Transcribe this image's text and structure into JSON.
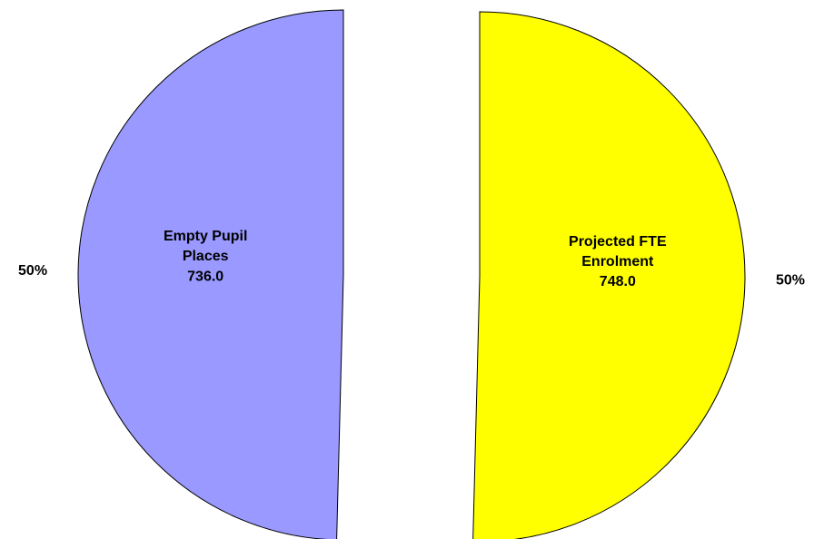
{
  "chart_data": {
    "type": "pie",
    "categories": [
      "Projected FTE Enrolment",
      "Empty Pupil Places"
    ],
    "values": [
      748,
      736
    ],
    "value_labels": [
      "748.0",
      "736.0"
    ],
    "percent_labels": [
      "50%",
      "50%"
    ],
    "colors": [
      "#ffff00",
      "#9999ff"
    ],
    "exploded": true
  }
}
